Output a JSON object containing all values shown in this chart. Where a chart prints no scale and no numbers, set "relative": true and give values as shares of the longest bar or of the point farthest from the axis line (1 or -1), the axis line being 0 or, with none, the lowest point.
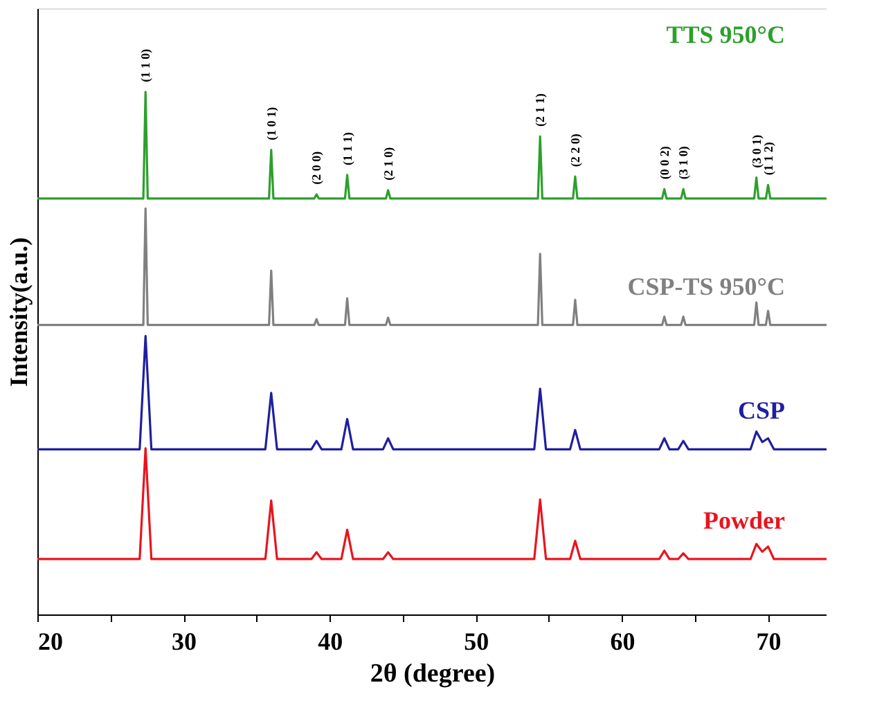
{
  "chart_data": {
    "type": "line",
    "relative": true,
    "xlabel": "2θ (degree)",
    "ylabel": "Intensity(a.u.)",
    "xlim": [
      20,
      74
    ],
    "xticks": [
      20,
      {
        "value": 25,
        "label": null
      },
      30,
      {
        "value": 35,
        "label": null
      },
      40,
      {
        "value": 45,
        "label": null
      },
      50,
      {
        "value": 55,
        "label": null
      },
      60,
      {
        "value": 65,
        "label": null
      },
      70
    ],
    "grid": false,
    "marker": "none",
    "line_style": "solid",
    "series": [
      {
        "name": "TTS 950°C",
        "color": "#2ca02c",
        "x": [
          20,
          27.25,
          27.4,
          27.55,
          35.85,
          36.0,
          36.15,
          38.95,
          39.1,
          39.25,
          41.05,
          41.2,
          41.35,
          43.85,
          44.0,
          44.15,
          54.25,
          54.4,
          54.55,
          56.65,
          56.8,
          56.95,
          62.75,
          62.9,
          63.05,
          64.05,
          64.2,
          64.35,
          69.05,
          69.2,
          69.35,
          69.85,
          70.0,
          70.15,
          74
        ],
        "values": [
          0.796,
          0.796,
          1.0,
          0.796,
          0.796,
          0.889,
          0.796,
          0.796,
          0.804,
          0.796,
          0.796,
          0.841,
          0.796,
          0.796,
          0.812,
          0.796,
          0.796,
          0.915,
          0.796,
          0.796,
          0.838,
          0.796,
          0.796,
          0.814,
          0.796,
          0.796,
          0.814,
          0.796,
          0.796,
          0.836,
          0.796,
          0.796,
          0.822,
          0.796,
          0.796
        ]
      },
      {
        "name": "CSP-TS 950°C",
        "color": "#808080",
        "x": [
          20,
          27.25,
          27.4,
          27.55,
          35.85,
          36.0,
          36.15,
          38.95,
          39.1,
          39.25,
          41.05,
          41.2,
          41.35,
          43.85,
          44.0,
          44.15,
          54.25,
          54.4,
          54.55,
          56.65,
          56.8,
          56.95,
          62.75,
          62.9,
          63.05,
          64.05,
          64.2,
          64.35,
          69.05,
          69.2,
          69.35,
          69.85,
          70.0,
          70.15,
          74
        ],
        "values": [
          0.554,
          0.554,
          0.777,
          0.554,
          0.554,
          0.658,
          0.554,
          0.554,
          0.565,
          0.554,
          0.554,
          0.605,
          0.554,
          0.554,
          0.568,
          0.554,
          0.554,
          0.69,
          0.554,
          0.554,
          0.602,
          0.554,
          0.554,
          0.57,
          0.554,
          0.554,
          0.57,
          0.554,
          0.554,
          0.597,
          0.554,
          0.554,
          0.581,
          0.554,
          0.554
        ]
      },
      {
        "name": "CSP",
        "color": "#1f1fa0",
        "x": [
          20,
          27.0,
          27.4,
          27.8,
          35.6,
          36.0,
          36.4,
          38.75,
          39.1,
          39.45,
          40.8,
          41.2,
          41.6,
          43.65,
          44.0,
          44.35,
          54.0,
          54.4,
          54.8,
          56.45,
          56.8,
          57.15,
          62.55,
          62.9,
          63.25,
          63.85,
          64.2,
          64.55,
          68.8,
          69.2,
          69.6,
          70.0,
          70.4,
          74
        ],
        "values": [
          0.316,
          0.316,
          0.533,
          0.316,
          0.316,
          0.424,
          0.316,
          0.316,
          0.332,
          0.316,
          0.316,
          0.374,
          0.316,
          0.316,
          0.337,
          0.316,
          0.316,
          0.432,
          0.316,
          0.316,
          0.353,
          0.316,
          0.316,
          0.337,
          0.316,
          0.316,
          0.332,
          0.316,
          0.316,
          0.35,
          0.33,
          0.337,
          0.316,
          0.316
        ]
      },
      {
        "name": "Powder",
        "color": "#e8141e",
        "x": [
          20,
          27.0,
          27.4,
          27.8,
          35.6,
          36.0,
          36.4,
          38.75,
          39.1,
          39.45,
          40.8,
          41.2,
          41.6,
          43.65,
          44.0,
          44.35,
          54.0,
          54.4,
          54.8,
          56.45,
          56.8,
          57.15,
          62.55,
          62.9,
          63.25,
          63.85,
          64.2,
          64.55,
          68.8,
          69.2,
          69.6,
          70.0,
          70.4,
          74
        ],
        "values": [
          0.106,
          0.106,
          0.318,
          0.106,
          0.106,
          0.218,
          0.106,
          0.106,
          0.119,
          0.106,
          0.106,
          0.162,
          0.106,
          0.106,
          0.119,
          0.106,
          0.106,
          0.22,
          0.106,
          0.106,
          0.141,
          0.106,
          0.106,
          0.122,
          0.106,
          0.106,
          0.117,
          0.106,
          0.106,
          0.135,
          0.12,
          0.13,
          0.106,
          0.106
        ]
      }
    ],
    "annotations": [
      {
        "text": "(1 1 0)",
        "x": 27.4,
        "y": 1.0
      },
      {
        "text": "(1 0 1)",
        "x": 36.0,
        "y": 0.889
      },
      {
        "text": "(2 0 0)",
        "x": 39.1,
        "y": 0.804
      },
      {
        "text": "(1 1 1)",
        "x": 41.2,
        "y": 0.841
      },
      {
        "text": "(2 1 0)",
        "x": 44.0,
        "y": 0.812
      },
      {
        "text": "(2 1 1)",
        "x": 54.4,
        "y": 0.915
      },
      {
        "text": "(2 2 0)",
        "x": 56.8,
        "y": 0.838
      },
      {
        "text": "(0 0 2)",
        "x": 62.9,
        "y": 0.814
      },
      {
        "text": "(3 1 0)",
        "x": 64.2,
        "y": 0.814
      },
      {
        "text": "(3 0 1)",
        "x": 69.2,
        "y": 0.836
      },
      {
        "text": "(1 1 2)",
        "x": 70.0,
        "y": 0.822
      }
    ]
  }
}
